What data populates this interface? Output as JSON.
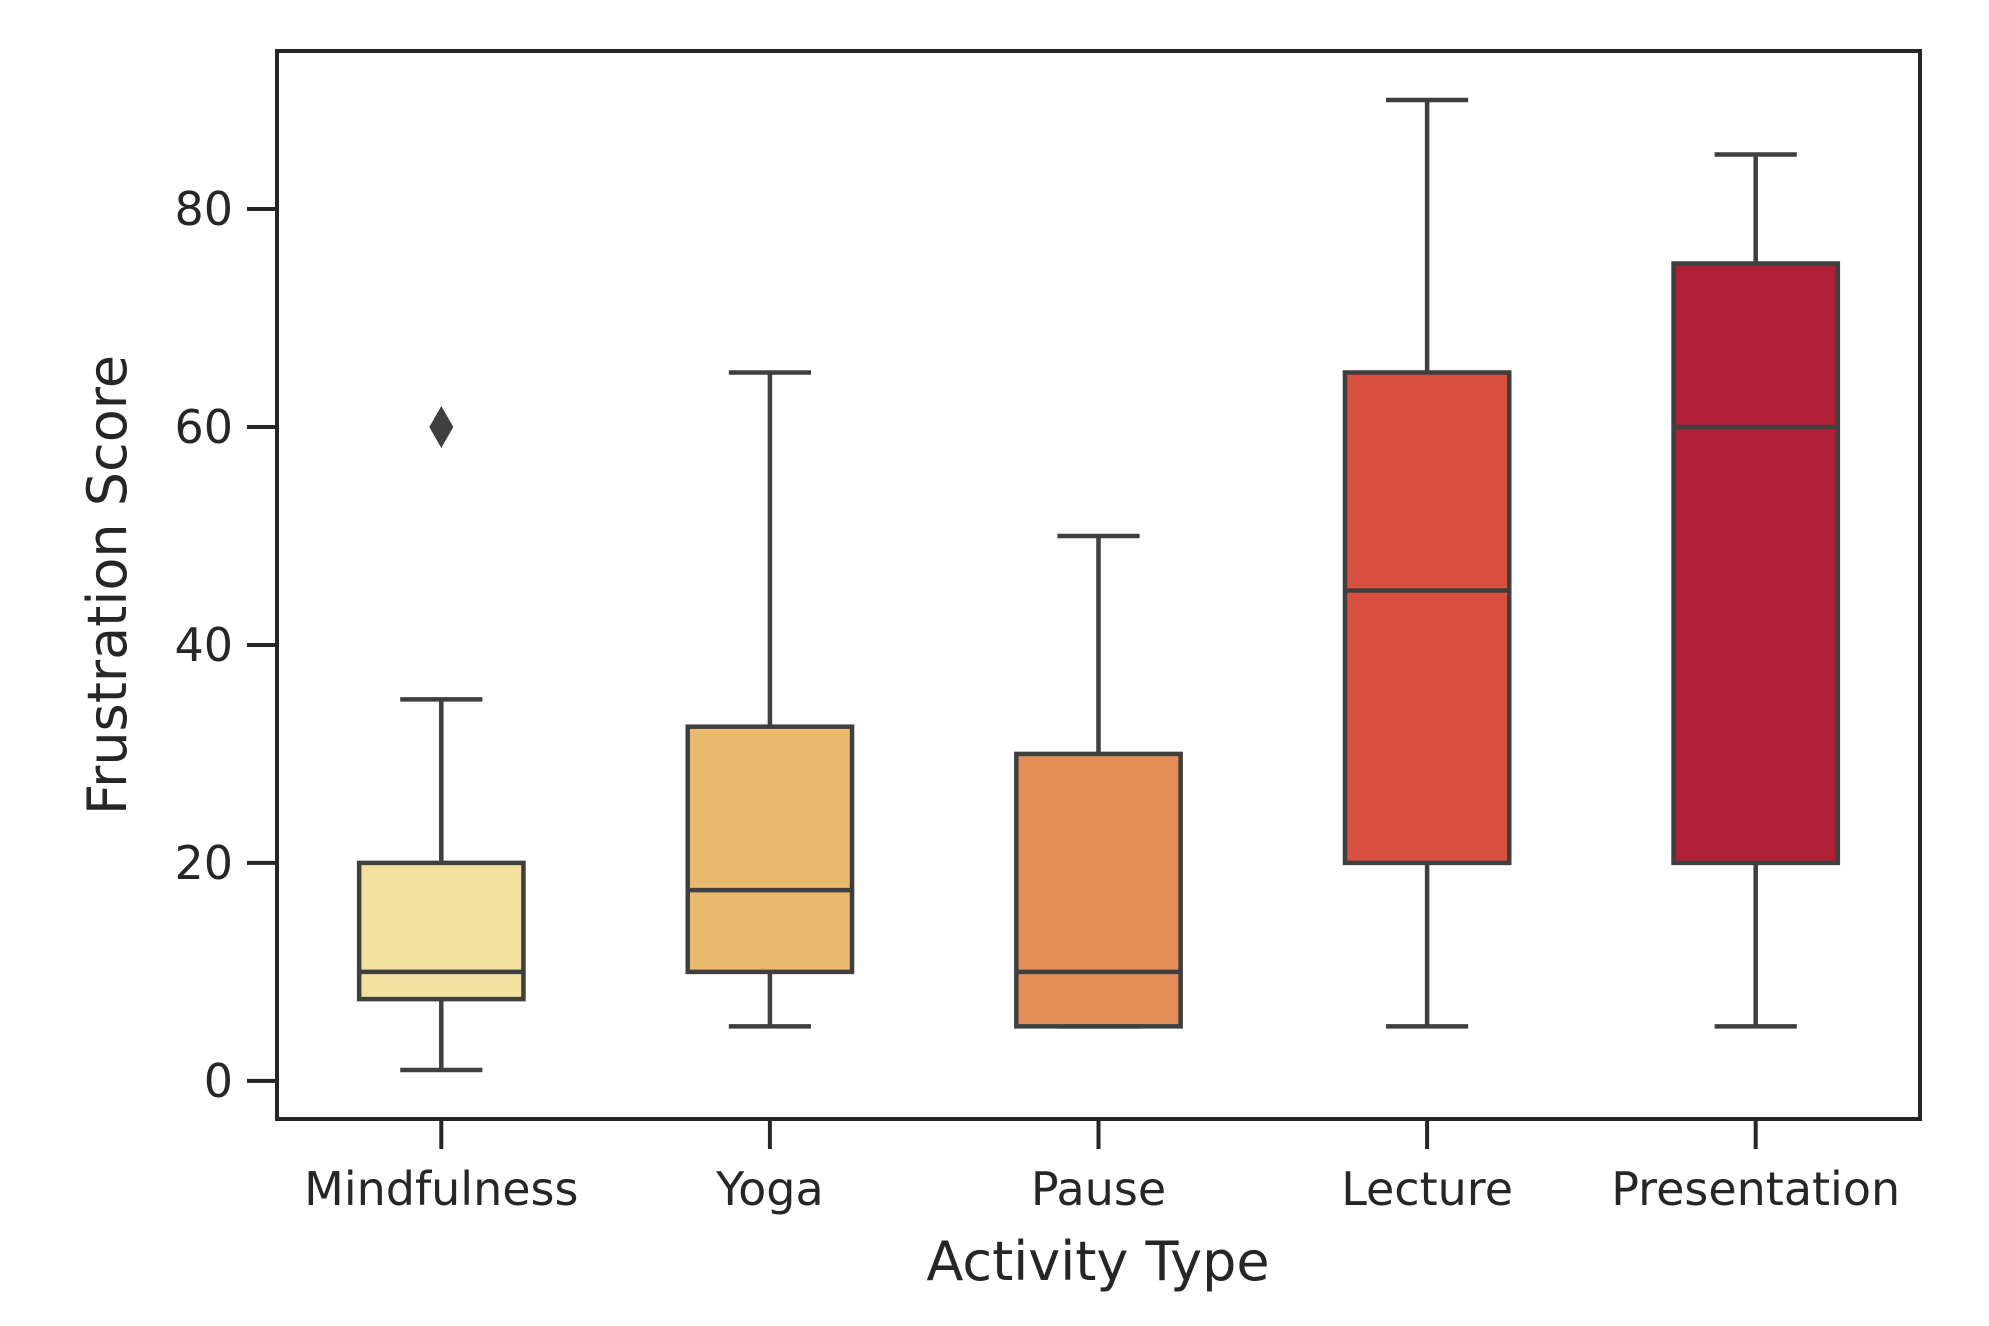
{
  "chart_data": {
    "type": "box",
    "title": "",
    "xlabel": "Activity Type",
    "ylabel": "Frustration Score",
    "ylim": [
      -3.5,
      94.5
    ],
    "yticks": [
      0,
      20,
      40,
      60,
      80
    ],
    "grid": false,
    "categories": [
      "Mindfulness",
      "Yoga",
      "Pause",
      "Lecture",
      "Presentation"
    ],
    "boxes": [
      {
        "category": "Mindfulness",
        "whisker_low": 1,
        "q1": 7.5,
        "median": 10,
        "q3": 20,
        "whisker_high": 35,
        "outliers": [
          60
        ],
        "color": "#f2e0a0"
      },
      {
        "category": "Yoga",
        "whisker_low": 5,
        "q1": 10,
        "median": 17.5,
        "q3": 32.5,
        "whisker_high": 65,
        "outliers": [],
        "color": "#e9b96e"
      },
      {
        "category": "Pause",
        "whisker_low": 5,
        "q1": 5,
        "median": 10,
        "q3": 30,
        "whisker_high": 50,
        "outliers": [],
        "color": "#e38e56"
      },
      {
        "category": "Lecture",
        "whisker_low": 5,
        "q1": 20,
        "median": 45,
        "q3": 65,
        "whisker_high": 90,
        "outliers": [],
        "color": "#d95040"
      },
      {
        "category": "Presentation",
        "whisker_low": 5,
        "q1": 20,
        "median": 60,
        "q3": 75,
        "whisker_high": 85,
        "outliers": [],
        "color": "#af1f36"
      }
    ],
    "line_color": "#3f3f3f",
    "axis_color": "#262626"
  }
}
